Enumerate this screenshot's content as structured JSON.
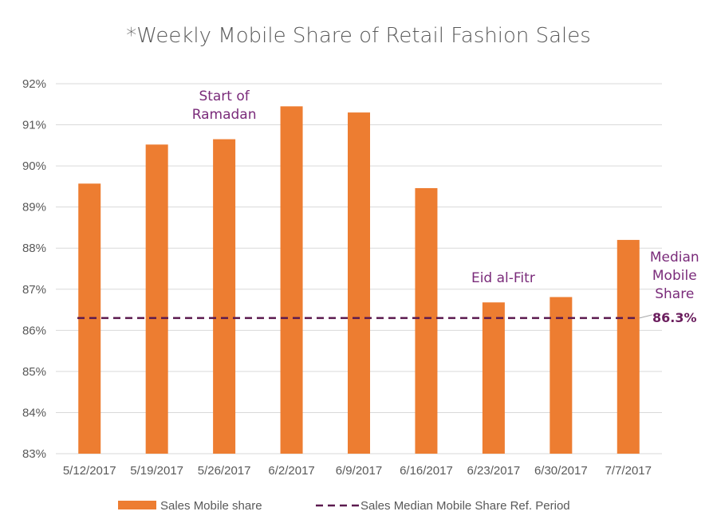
{
  "chart_data": {
    "type": "bar",
    "title": "*Weekly Mobile Share of Retail Fashion Sales",
    "categories": [
      "5/12/2017",
      "5/19/2017",
      "5/26/2017",
      "6/2/2017",
      "6/9/2017",
      "6/16/2017",
      "6/23/2017",
      "6/30/2017",
      "7/7/2017"
    ],
    "series": [
      {
        "name": "Sales Mobile share",
        "values": [
          89.57,
          90.52,
          90.65,
          91.45,
          91.3,
          89.46,
          86.68,
          86.81,
          88.2
        ],
        "color": "#ed7d31"
      }
    ],
    "reference_line": {
      "name": "Sales Median Mobile Share Ref. Period",
      "value": 86.3,
      "color": "#5b1a4f",
      "style": "dashed"
    },
    "ylim": [
      83,
      92
    ],
    "yticks": [
      "83%",
      "84%",
      "85%",
      "86%",
      "87%",
      "88%",
      "89%",
      "90%",
      "91%",
      "92%"
    ],
    "grid": true,
    "legend_position": "bottom",
    "annotations": [
      {
        "lines": [
          "Start of",
          "Ramadan"
        ],
        "category": "5/26/2017"
      },
      {
        "lines": [
          "Eid al-Fitr"
        ],
        "category": "6/23/2017"
      },
      {
        "lines": [
          "Median",
          "Mobile",
          "Share"
        ],
        "category": "7/7/2017"
      }
    ],
    "median_label": "86.3%"
  }
}
